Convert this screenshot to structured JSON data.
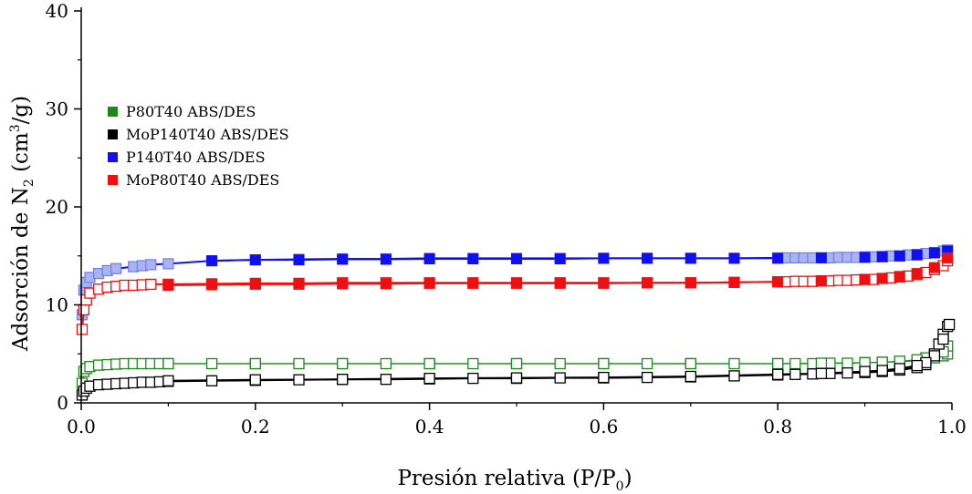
{
  "chart_data": {
    "type": "scatter",
    "title": "",
    "xlabel": "Presión relativa (P/P",
    "xlabel_sub": "0",
    "xlabel_end": ")",
    "ylabel": "Adsorción de N",
    "ylabel_sub": "2",
    "ylabel_mid": " (cm",
    "ylabel_sup": "3",
    "ylabel_end": "/g)",
    "xlim": [
      0,
      1.0
    ],
    "ylim": [
      0,
      40
    ],
    "x_ticks": [
      "0.0",
      "0.2",
      "0.4",
      "0.6",
      "0.8",
      "1.0"
    ],
    "y_ticks": [
      "0",
      "10",
      "20",
      "30",
      "40"
    ],
    "legend_position": "upper-left",
    "series": [
      {
        "name": "P80T40 ABS/DES",
        "color": "#1a8a1a",
        "ads": [
          [
            0.001,
            2.0
          ],
          [
            0.003,
            3.2
          ],
          [
            0.006,
            3.5
          ],
          [
            0.01,
            3.7
          ],
          [
            0.02,
            3.85
          ],
          [
            0.03,
            3.9
          ],
          [
            0.04,
            3.95
          ],
          [
            0.05,
            4.0
          ],
          [
            0.06,
            4.0
          ],
          [
            0.07,
            4.0
          ],
          [
            0.08,
            4.0
          ],
          [
            0.09,
            4.0
          ],
          [
            0.1,
            4.0
          ],
          [
            0.15,
            4.0
          ],
          [
            0.2,
            4.0
          ],
          [
            0.25,
            4.0
          ],
          [
            0.3,
            4.0
          ],
          [
            0.35,
            4.0
          ],
          [
            0.4,
            4.0
          ],
          [
            0.45,
            4.0
          ],
          [
            0.5,
            4.0
          ],
          [
            0.55,
            4.0
          ],
          [
            0.6,
            4.0
          ],
          [
            0.65,
            4.0
          ],
          [
            0.7,
            4.0
          ],
          [
            0.75,
            4.0
          ],
          [
            0.8,
            4.0
          ],
          [
            0.82,
            4.0
          ],
          [
            0.84,
            4.0
          ],
          [
            0.86,
            4.05
          ],
          [
            0.88,
            4.05
          ],
          [
            0.9,
            4.1
          ],
          [
            0.92,
            4.15
          ],
          [
            0.94,
            4.2
          ],
          [
            0.96,
            4.3
          ],
          [
            0.97,
            4.4
          ],
          [
            0.98,
            4.6
          ],
          [
            0.99,
            4.8
          ],
          [
            0.995,
            5.0
          ]
        ],
        "des": [
          [
            0.995,
            5.8
          ],
          [
            0.99,
            5.2
          ],
          [
            0.98,
            4.9
          ],
          [
            0.97,
            4.6
          ],
          [
            0.96,
            4.4
          ],
          [
            0.94,
            4.25
          ],
          [
            0.92,
            4.15
          ],
          [
            0.9,
            4.1
          ],
          [
            0.85,
            4.05
          ],
          [
            0.8,
            4.0
          ],
          [
            0.7,
            4.0
          ],
          [
            0.6,
            4.0
          ],
          [
            0.5,
            4.0
          ],
          [
            0.4,
            4.0
          ],
          [
            0.3,
            4.0
          ],
          [
            0.2,
            4.0
          ],
          [
            0.1,
            4.0
          ]
        ]
      },
      {
        "name": "MoP140T40 ABS/DES",
        "color": "#000000",
        "ads": [
          [
            0.001,
            0.8
          ],
          [
            0.003,
            1.2
          ],
          [
            0.006,
            1.5
          ],
          [
            0.01,
            1.7
          ],
          [
            0.02,
            1.85
          ],
          [
            0.03,
            1.9
          ],
          [
            0.04,
            1.95
          ],
          [
            0.05,
            2.0
          ],
          [
            0.06,
            2.05
          ],
          [
            0.07,
            2.1
          ],
          [
            0.08,
            2.1
          ],
          [
            0.09,
            2.15
          ],
          [
            0.1,
            2.2
          ],
          [
            0.15,
            2.25
          ],
          [
            0.2,
            2.3
          ],
          [
            0.25,
            2.35
          ],
          [
            0.3,
            2.4
          ],
          [
            0.35,
            2.4
          ],
          [
            0.4,
            2.45
          ],
          [
            0.45,
            2.5
          ],
          [
            0.5,
            2.5
          ],
          [
            0.55,
            2.55
          ],
          [
            0.6,
            2.55
          ],
          [
            0.65,
            2.6
          ],
          [
            0.7,
            2.65
          ],
          [
            0.75,
            2.75
          ],
          [
            0.8,
            2.85
          ],
          [
            0.82,
            2.9
          ],
          [
            0.84,
            2.95
          ],
          [
            0.86,
            3.0
          ],
          [
            0.88,
            3.05
          ],
          [
            0.9,
            3.1
          ],
          [
            0.92,
            3.2
          ],
          [
            0.94,
            3.35
          ],
          [
            0.96,
            3.6
          ],
          [
            0.97,
            3.9
          ],
          [
            0.98,
            5.0
          ],
          [
            0.985,
            6.0
          ],
          [
            0.99,
            7.0
          ],
          [
            0.995,
            7.8
          ]
        ],
        "des": [
          [
            0.997,
            8.0
          ],
          [
            0.99,
            6.5
          ],
          [
            0.98,
            4.8
          ],
          [
            0.97,
            4.1
          ],
          [
            0.96,
            3.8
          ],
          [
            0.94,
            3.5
          ],
          [
            0.92,
            3.3
          ],
          [
            0.9,
            3.2
          ],
          [
            0.85,
            3.0
          ],
          [
            0.8,
            2.9
          ],
          [
            0.7,
            2.7
          ],
          [
            0.6,
            2.6
          ],
          [
            0.5,
            2.55
          ],
          [
            0.4,
            2.5
          ],
          [
            0.3,
            2.4
          ],
          [
            0.2,
            2.35
          ],
          [
            0.1,
            2.25
          ]
        ]
      },
      {
        "name": "P140T40 ABS/DES",
        "color": "#1010ee",
        "light": "#aab4f0",
        "ads": [
          [
            0.001,
            9.0
          ],
          [
            0.003,
            11.5
          ],
          [
            0.006,
            12.3
          ],
          [
            0.01,
            12.8
          ],
          [
            0.02,
            13.2
          ],
          [
            0.03,
            13.5
          ],
          [
            0.04,
            13.7
          ],
          [
            0.06,
            13.9
          ],
          [
            0.07,
            14.0
          ],
          [
            0.08,
            14.1
          ],
          [
            0.1,
            14.2
          ],
          [
            0.15,
            14.5
          ],
          [
            0.2,
            14.6
          ],
          [
            0.25,
            14.65
          ],
          [
            0.3,
            14.7
          ],
          [
            0.35,
            14.7
          ],
          [
            0.4,
            14.75
          ],
          [
            0.45,
            14.75
          ],
          [
            0.5,
            14.75
          ],
          [
            0.55,
            14.75
          ],
          [
            0.6,
            14.75
          ],
          [
            0.65,
            14.75
          ],
          [
            0.7,
            14.75
          ],
          [
            0.75,
            14.75
          ],
          [
            0.8,
            14.8
          ],
          [
            0.81,
            14.8
          ],
          [
            0.82,
            14.8
          ],
          [
            0.83,
            14.8
          ],
          [
            0.84,
            14.8
          ],
          [
            0.85,
            14.8
          ],
          [
            0.86,
            14.8
          ],
          [
            0.87,
            14.85
          ],
          [
            0.88,
            14.85
          ],
          [
            0.89,
            14.85
          ],
          [
            0.9,
            14.9
          ],
          [
            0.91,
            14.9
          ],
          [
            0.92,
            14.95
          ],
          [
            0.93,
            15.0
          ],
          [
            0.94,
            15.0
          ],
          [
            0.95,
            15.1
          ],
          [
            0.96,
            15.15
          ],
          [
            0.97,
            15.25
          ],
          [
            0.98,
            15.35
          ],
          [
            0.99,
            15.5
          ],
          [
            0.995,
            15.6
          ]
        ],
        "des": [
          [
            0.995,
            15.5
          ],
          [
            0.98,
            15.3
          ],
          [
            0.96,
            15.1
          ],
          [
            0.94,
            15.0
          ],
          [
            0.92,
            14.9
          ],
          [
            0.9,
            14.85
          ],
          [
            0.85,
            14.8
          ],
          [
            0.8,
            14.75
          ],
          [
            0.75,
            14.75
          ],
          [
            0.7,
            14.75
          ],
          [
            0.65,
            14.75
          ],
          [
            0.6,
            14.75
          ],
          [
            0.55,
            14.7
          ],
          [
            0.5,
            14.7
          ],
          [
            0.45,
            14.7
          ],
          [
            0.4,
            14.7
          ],
          [
            0.35,
            14.65
          ],
          [
            0.3,
            14.65
          ],
          [
            0.25,
            14.6
          ],
          [
            0.2,
            14.6
          ],
          [
            0.15,
            14.5
          ]
        ]
      },
      {
        "name": "MoP80T40 ABS/DES",
        "color": "#ee1010",
        "ads": [
          [
            0.001,
            7.5
          ],
          [
            0.003,
            9.5
          ],
          [
            0.006,
            10.5
          ],
          [
            0.01,
            11.2
          ],
          [
            0.02,
            11.6
          ],
          [
            0.03,
            11.8
          ],
          [
            0.04,
            11.9
          ],
          [
            0.05,
            12.0
          ],
          [
            0.06,
            12.0
          ],
          [
            0.07,
            12.05
          ],
          [
            0.08,
            12.1
          ],
          [
            0.1,
            12.1
          ],
          [
            0.15,
            12.15
          ],
          [
            0.2,
            12.2
          ],
          [
            0.25,
            12.2
          ],
          [
            0.3,
            12.25
          ],
          [
            0.35,
            12.25
          ],
          [
            0.4,
            12.25
          ],
          [
            0.45,
            12.25
          ],
          [
            0.5,
            12.25
          ],
          [
            0.55,
            12.25
          ],
          [
            0.6,
            12.25
          ],
          [
            0.65,
            12.25
          ],
          [
            0.7,
            12.25
          ],
          [
            0.75,
            12.3
          ],
          [
            0.8,
            12.35
          ],
          [
            0.81,
            12.35
          ],
          [
            0.82,
            12.4
          ],
          [
            0.83,
            12.4
          ],
          [
            0.84,
            12.4
          ],
          [
            0.85,
            12.45
          ],
          [
            0.86,
            12.45
          ],
          [
            0.87,
            12.5
          ],
          [
            0.88,
            12.5
          ],
          [
            0.89,
            12.55
          ],
          [
            0.9,
            12.6
          ],
          [
            0.91,
            12.6
          ],
          [
            0.92,
            12.7
          ],
          [
            0.93,
            12.75
          ],
          [
            0.94,
            12.85
          ],
          [
            0.95,
            12.95
          ],
          [
            0.96,
            13.1
          ],
          [
            0.97,
            13.3
          ],
          [
            0.98,
            13.6
          ],
          [
            0.99,
            14.0
          ],
          [
            0.995,
            14.5
          ]
        ],
        "des": [
          [
            0.995,
            14.8
          ],
          [
            0.98,
            13.8
          ],
          [
            0.96,
            13.2
          ],
          [
            0.94,
            12.9
          ],
          [
            0.92,
            12.7
          ],
          [
            0.9,
            12.6
          ],
          [
            0.85,
            12.45
          ],
          [
            0.8,
            12.35
          ],
          [
            0.75,
            12.3
          ],
          [
            0.7,
            12.25
          ],
          [
            0.65,
            12.25
          ],
          [
            0.6,
            12.2
          ],
          [
            0.55,
            12.2
          ],
          [
            0.5,
            12.2
          ],
          [
            0.45,
            12.2
          ],
          [
            0.4,
            12.2
          ],
          [
            0.35,
            12.15
          ],
          [
            0.3,
            12.15
          ],
          [
            0.25,
            12.1
          ],
          [
            0.2,
            12.1
          ],
          [
            0.15,
            12.05
          ],
          [
            0.1,
            12.0
          ]
        ]
      }
    ]
  }
}
